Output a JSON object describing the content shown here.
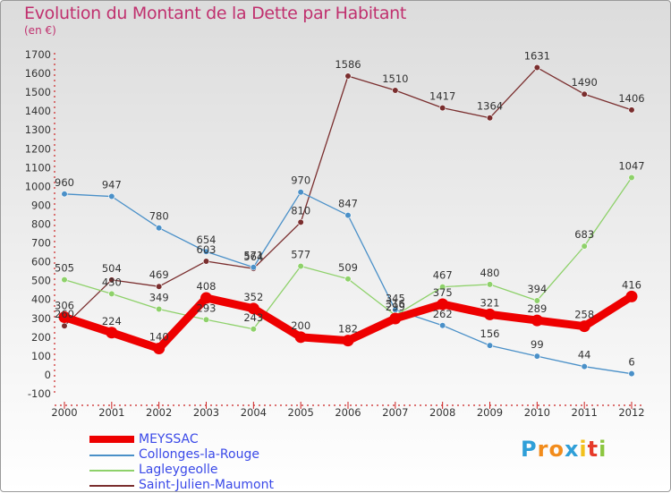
{
  "title": "Evolution du Montant de la Dette par Habitant",
  "subtitle": "(en €)",
  "logo": [
    "P",
    "r",
    "o",
    "x",
    "i",
    "t",
    "i"
  ],
  "logo_colors": [
    "#2f9fd8",
    "#f28c1c",
    "#f28c1c",
    "#2f9fd8",
    "#f2c11c",
    "#e63b2a",
    "#8cc63f"
  ],
  "chart_data": {
    "type": "line",
    "categories": [
      "2000",
      "2001",
      "2002",
      "2003",
      "2004",
      "2005",
      "2006",
      "2007",
      "2008",
      "2009",
      "2010",
      "2011",
      "2012"
    ],
    "ylim": [
      -100,
      1700
    ],
    "yticks": [
      -100,
      0,
      100,
      200,
      300,
      400,
      500,
      600,
      700,
      800,
      900,
      1000,
      1100,
      1200,
      1300,
      1400,
      1500,
      1600,
      1700
    ],
    "grid": false,
    "legend_position": "bottom-left",
    "series": [
      {
        "name": "MEYSSAC",
        "color": "#ee0000",
        "width": 9,
        "values": [
          306,
          224,
          140,
          408,
          352,
          200,
          182,
          299,
          375,
          321,
          289,
          258,
          416
        ]
      },
      {
        "name": "Collonges-la-Rouge",
        "color": "#4a90c8",
        "width": 1.3,
        "values": [
          960,
          947,
          780,
          654,
          571,
          970,
          847,
          345,
          262,
          156,
          99,
          44,
          6
        ]
      },
      {
        "name": "Lagleygeolle",
        "color": "#8ed16a",
        "width": 1.3,
        "values": [
          505,
          430,
          349,
          293,
          243,
          577,
          509,
          316,
          467,
          480,
          394,
          683,
          1047
        ]
      },
      {
        "name": "Saint-Julien-Maumont",
        "color": "#7a2e2e",
        "width": 1.3,
        "values": [
          260,
          504,
          469,
          603,
          564,
          810,
          1586,
          1510,
          1417,
          1364,
          1631,
          1490,
          1406
        ]
      }
    ]
  }
}
